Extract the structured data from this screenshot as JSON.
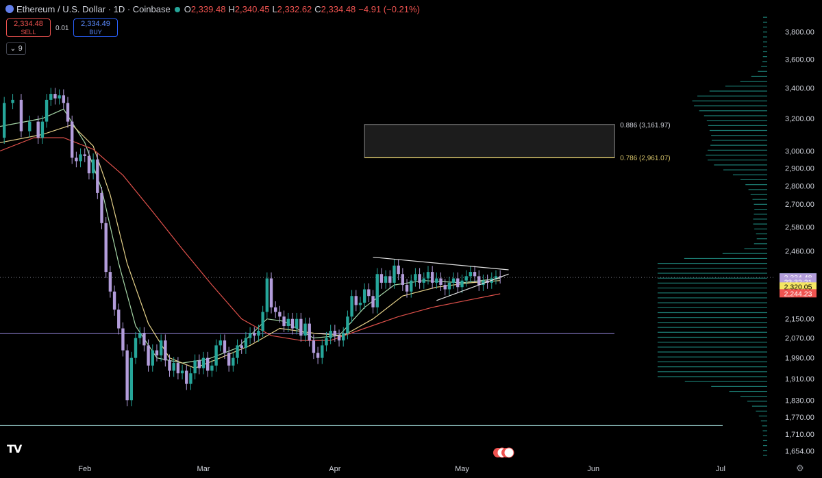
{
  "header": {
    "title": "Ethereum / U.S. Dollar · 1D · Coinbase",
    "open_label": "O",
    "open": "2,339.48",
    "high_label": "H",
    "high": "2,340.45",
    "low_label": "L",
    "low": "2,332.62",
    "close_label": "C",
    "close": "2,334.48",
    "change": "−4.91 (−0.21%)"
  },
  "trade": {
    "sell_price": "2,334.48",
    "sell_label": "SELL",
    "buy_price": "2,334.49",
    "buy_label": "BUY",
    "spread": "0.01"
  },
  "indicators_toggle": "9",
  "colors": {
    "up": "#26a69a",
    "down": "#b39ddb",
    "ma_fast": "#a5d6a7",
    "ma_mid": "#e6d28a",
    "ma_slow": "#e0514b",
    "price_line": "#787b86",
    "fib": "#d1d4dc",
    "volume_profile": "#26a69a",
    "support": "#9c8ce6"
  },
  "chart_data": {
    "type": "candlestick",
    "symbol": "Ethereum / U.S. Dollar",
    "interval": "1D",
    "exchange": "Coinbase",
    "y_scale": "log",
    "ylim": [
      1640,
      3950
    ],
    "y_ticks": [
      "3,800.00",
      "3,600.00",
      "3,400.00",
      "3,200.00",
      "3,000.00",
      "2,900.00",
      "2,800.00",
      "2,700.00",
      "2,580.00",
      "2,460.00",
      "2,150.00",
      "2,070.00",
      "1,990.00",
      "1,910.00",
      "1,830.00",
      "1,770.00",
      "1,710.00",
      "1,654.00"
    ],
    "y_tick_values": [
      3800,
      3600,
      3400,
      3200,
      3000,
      2900,
      2800,
      2700,
      2580,
      2460,
      2150,
      2070,
      1990,
      1910,
      1830,
      1770,
      1710,
      1654
    ],
    "x_labels": [
      "Feb",
      "Mar",
      "Apr",
      "May",
      "Jun",
      "Jul"
    ],
    "x_label_dates": [
      "2026-02-01",
      "2026-03-01",
      "2026-04-01",
      "2026-05-01",
      "2026-06-01",
      "2026-07-01"
    ],
    "x_range": [
      "2026-01-12",
      "2026-07-12"
    ],
    "close_series": [
      {
        "date": "2026-01-12",
        "close": 3080
      },
      {
        "date": "2026-01-13",
        "close": 3300
      },
      {
        "date": "2026-01-15",
        "close": 3320
      },
      {
        "date": "2026-01-17",
        "close": 3120
      },
      {
        "date": "2026-01-19",
        "close": 3180
      },
      {
        "date": "2026-01-21",
        "close": 3080
      },
      {
        "date": "2026-01-22",
        "close": 3180
      },
      {
        "date": "2026-01-23",
        "close": 3320
      },
      {
        "date": "2026-01-24",
        "close": 3360
      },
      {
        "date": "2026-01-25",
        "close": 3330
      },
      {
        "date": "2026-01-26",
        "close": 3350
      },
      {
        "date": "2026-01-27",
        "close": 3300
      },
      {
        "date": "2026-01-28",
        "close": 3180
      },
      {
        "date": "2026-01-29",
        "close": 2960
      },
      {
        "date": "2026-01-30",
        "close": 2940
      },
      {
        "date": "2026-01-31",
        "close": 2980
      },
      {
        "date": "2026-02-01",
        "close": 2970
      },
      {
        "date": "2026-02-02",
        "close": 2870
      },
      {
        "date": "2026-02-03",
        "close": 2950
      },
      {
        "date": "2026-02-04",
        "close": 2760
      },
      {
        "date": "2026-02-05",
        "close": 2600
      },
      {
        "date": "2026-02-06",
        "close": 2360
      },
      {
        "date": "2026-02-07",
        "close": 2270
      },
      {
        "date": "2026-02-08",
        "close": 2190
      },
      {
        "date": "2026-02-09",
        "close": 2110
      },
      {
        "date": "2026-02-10",
        "close": 2020
      },
      {
        "date": "2026-02-11",
        "close": 1830
      },
      {
        "date": "2026-02-12",
        "close": 1990
      },
      {
        "date": "2026-02-13",
        "close": 2070
      },
      {
        "date": "2026-02-14",
        "close": 2090
      },
      {
        "date": "2026-02-15",
        "close": 2040
      },
      {
        "date": "2026-02-16",
        "close": 1960
      },
      {
        "date": "2026-02-17",
        "close": 2020
      },
      {
        "date": "2026-02-18",
        "close": 2000
      },
      {
        "date": "2026-02-19",
        "close": 2060
      },
      {
        "date": "2026-02-20",
        "close": 1980
      },
      {
        "date": "2026-02-21",
        "close": 1940
      },
      {
        "date": "2026-02-22",
        "close": 1970
      },
      {
        "date": "2026-02-23",
        "close": 1930
      },
      {
        "date": "2026-02-24",
        "close": 1940
      },
      {
        "date": "2026-02-25",
        "close": 1890
      },
      {
        "date": "2026-02-26",
        "close": 1930
      },
      {
        "date": "2026-02-27",
        "close": 1980
      },
      {
        "date": "2026-02-28",
        "close": 1950
      },
      {
        "date": "2026-03-01",
        "close": 1990
      },
      {
        "date": "2026-03-02",
        "close": 1940
      },
      {
        "date": "2026-03-03",
        "close": 1960
      },
      {
        "date": "2026-03-04",
        "close": 2040
      },
      {
        "date": "2026-03-05",
        "close": 2060
      },
      {
        "date": "2026-03-06",
        "close": 2010
      },
      {
        "date": "2026-03-07",
        "close": 1960
      },
      {
        "date": "2026-03-08",
        "close": 1990
      },
      {
        "date": "2026-03-09",
        "close": 2040
      },
      {
        "date": "2026-03-10",
        "close": 2030
      },
      {
        "date": "2026-03-11",
        "close": 2070
      },
      {
        "date": "2026-03-12",
        "close": 2090
      },
      {
        "date": "2026-03-13",
        "close": 2080
      },
      {
        "date": "2026-03-14",
        "close": 2100
      },
      {
        "date": "2026-03-15",
        "close": 2180
      },
      {
        "date": "2026-03-16",
        "close": 2330
      },
      {
        "date": "2026-03-17",
        "close": 2200
      },
      {
        "date": "2026-03-18",
        "close": 2180
      },
      {
        "date": "2026-03-19",
        "close": 2160
      },
      {
        "date": "2026-03-20",
        "close": 2120
      },
      {
        "date": "2026-03-21",
        "close": 2150
      },
      {
        "date": "2026-03-22",
        "close": 2110
      },
      {
        "date": "2026-03-23",
        "close": 2150
      },
      {
        "date": "2026-03-24",
        "close": 2080
      },
      {
        "date": "2026-03-25",
        "close": 2130
      },
      {
        "date": "2026-03-26",
        "close": 2060
      },
      {
        "date": "2026-03-27",
        "close": 2010
      },
      {
        "date": "2026-03-28",
        "close": 1990
      },
      {
        "date": "2026-03-29",
        "close": 2040
      },
      {
        "date": "2026-03-30",
        "close": 2070
      },
      {
        "date": "2026-03-31",
        "close": 2100
      },
      {
        "date": "2026-04-01",
        "close": 2080
      },
      {
        "date": "2026-04-02",
        "close": 2060
      },
      {
        "date": "2026-04-03",
        "close": 2090
      },
      {
        "date": "2026-04-04",
        "close": 2160
      },
      {
        "date": "2026-04-05",
        "close": 2250
      },
      {
        "date": "2026-04-06",
        "close": 2210
      },
      {
        "date": "2026-04-07",
        "close": 2220
      },
      {
        "date": "2026-04-08",
        "close": 2280
      },
      {
        "date": "2026-04-09",
        "close": 2250
      },
      {
        "date": "2026-04-10",
        "close": 2200
      },
      {
        "date": "2026-04-11",
        "close": 2350
      },
      {
        "date": "2026-04-12",
        "close": 2310
      },
      {
        "date": "2026-04-13",
        "close": 2340
      },
      {
        "date": "2026-04-14",
        "close": 2310
      },
      {
        "date": "2026-04-15",
        "close": 2390
      },
      {
        "date": "2026-04-16",
        "close": 2350
      },
      {
        "date": "2026-04-17",
        "close": 2300
      },
      {
        "date": "2026-04-18",
        "close": 2270
      },
      {
        "date": "2026-04-19",
        "close": 2320
      },
      {
        "date": "2026-04-20",
        "close": 2350
      },
      {
        "date": "2026-04-21",
        "close": 2310
      },
      {
        "date": "2026-04-22",
        "close": 2330
      },
      {
        "date": "2026-04-23",
        "close": 2360
      },
      {
        "date": "2026-04-24",
        "close": 2310
      },
      {
        "date": "2026-04-25",
        "close": 2330
      },
      {
        "date": "2026-04-26",
        "close": 2300
      },
      {
        "date": "2026-04-27",
        "close": 2280
      },
      {
        "date": "2026-04-28",
        "close": 2310
      },
      {
        "date": "2026-04-29",
        "close": 2330
      },
      {
        "date": "2026-04-30",
        "close": 2290
      },
      {
        "date": "2026-05-01",
        "close": 2320
      },
      {
        "date": "2026-05-02",
        "close": 2340
      },
      {
        "date": "2026-05-03",
        "close": 2360
      },
      {
        "date": "2026-05-04",
        "close": 2340
      },
      {
        "date": "2026-05-05",
        "close": 2300
      },
      {
        "date": "2026-05-06",
        "close": 2320
      },
      {
        "date": "2026-05-07",
        "close": 2310
      },
      {
        "date": "2026-05-08",
        "close": 2330
      },
      {
        "date": "2026-05-09",
        "close": 2340
      },
      {
        "date": "2026-05-10",
        "close": 2334.48
      }
    ],
    "moving_averages": [
      {
        "points": [
          [
            "2026-01-12",
            3150
          ],
          [
            "2026-01-22",
            3200
          ],
          [
            "2026-01-27",
            3260
          ],
          [
            "2026-02-01",
            3050
          ],
          [
            "2026-02-05",
            2780
          ],
          [
            "2026-02-09",
            2400
          ],
          [
            "2026-02-13",
            2120
          ],
          [
            "2026-02-18",
            1990
          ],
          [
            "2026-02-24",
            1970
          ],
          [
            "2026-03-02",
            1985
          ],
          [
            "2026-03-09",
            2030
          ],
          [
            "2026-03-16",
            2150
          ],
          [
            "2026-03-20",
            2140
          ],
          [
            "2026-03-27",
            2070
          ],
          [
            "2026-04-02",
            2080
          ],
          [
            "2026-04-08",
            2200
          ],
          [
            "2026-04-15",
            2300
          ],
          [
            "2026-04-22",
            2320
          ],
          [
            "2026-05-01",
            2310
          ],
          [
            "2026-05-10",
            2330
          ]
        ]
      },
      {
        "points": [
          [
            "2026-01-12",
            3050
          ],
          [
            "2026-01-22",
            3100
          ],
          [
            "2026-01-29",
            3160
          ],
          [
            "2026-02-03",
            3030
          ],
          [
            "2026-02-07",
            2750
          ],
          [
            "2026-02-11",
            2400
          ],
          [
            "2026-02-16",
            2130
          ],
          [
            "2026-02-21",
            1990
          ],
          [
            "2026-02-27",
            1950
          ],
          [
            "2026-03-05",
            1990
          ],
          [
            "2026-03-12",
            2040
          ],
          [
            "2026-03-19",
            2110
          ],
          [
            "2026-03-27",
            2090
          ],
          [
            "2026-04-03",
            2080
          ],
          [
            "2026-04-10",
            2150
          ],
          [
            "2026-04-17",
            2250
          ],
          [
            "2026-04-25",
            2290
          ],
          [
            "2026-05-03",
            2310
          ],
          [
            "2026-05-10",
            2320
          ]
        ]
      },
      {
        "points": [
          [
            "2026-01-12",
            3000
          ],
          [
            "2026-01-20",
            3080
          ],
          [
            "2026-01-27",
            3080
          ],
          [
            "2026-02-03",
            3010
          ],
          [
            "2026-02-10",
            2860
          ],
          [
            "2026-02-17",
            2660
          ],
          [
            "2026-02-24",
            2470
          ],
          [
            "2026-03-03",
            2300
          ],
          [
            "2026-03-10",
            2150
          ],
          [
            "2026-03-17",
            2080
          ],
          [
            "2026-03-24",
            2060
          ],
          [
            "2026-03-31",
            2060
          ],
          [
            "2026-04-08",
            2110
          ],
          [
            "2026-04-16",
            2160
          ],
          [
            "2026-04-24",
            2200
          ],
          [
            "2026-05-02",
            2230
          ],
          [
            "2026-05-10",
            2260
          ]
        ]
      }
    ],
    "fib_levels": [
      {
        "label": "0.886 (3,161.97)",
        "value": 3161.97
      },
      {
        "label": "0.786 (2,961.07)",
        "value": 2961.07
      }
    ],
    "horizontal_lines": [
      {
        "name": "support",
        "value": 2090
      },
      {
        "name": "low",
        "value": 1740
      }
    ],
    "triangle": {
      "upper": [
        [
          "2026-04-10",
          2430
        ],
        [
          "2026-05-12",
          2370
        ]
      ],
      "lower": [
        [
          "2026-04-25",
          2230
        ],
        [
          "2026-05-12",
          2350
        ]
      ]
    },
    "price_tags": [
      {
        "text": "2,334.98",
        "color": "#26a69a",
        "text_color": "#ffffff"
      },
      {
        "text": "2,334.48",
        "color": "#b39ddb",
        "text_color": "#ffffff"
      },
      {
        "text": "23:32:21",
        "color": "#b39ddb",
        "text_color": "#ffffff"
      },
      {
        "text": "2,320.05",
        "color": "#f5e663",
        "text_color": "#000000"
      },
      {
        "text": "2,244.23",
        "color": "#ef5350",
        "text_color": "#ffffff"
      }
    ],
    "price_tag_values": [
      2334.98,
      2334.48,
      2315,
      2293,
      2262
    ],
    "grid": false
  }
}
